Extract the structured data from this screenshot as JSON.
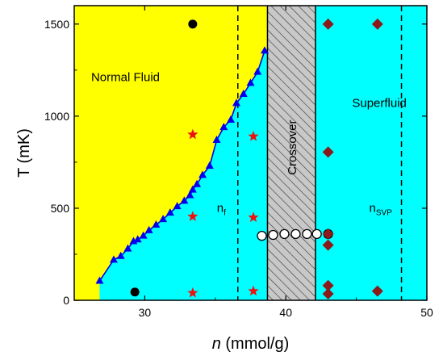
{
  "chart_data": {
    "type": "scatter",
    "title": "",
    "xlabel_italic": "n",
    "xlabel_rest": " (mmol/g)",
    "ylabel": "T (mK)",
    "xlim": [
      25,
      50
    ],
    "ylim": [
      0,
      1600
    ],
    "x_ticks": [
      "30",
      "40",
      "50"
    ],
    "x_tick_values": [
      30,
      40,
      50
    ],
    "y_ticks": [
      "0",
      "500",
      "1000",
      "1500"
    ],
    "y_tick_values": [
      0,
      500,
      1000,
      1500
    ],
    "regions": {
      "normal_fluid_label": "Normal Fluid",
      "superfluid_label": "Superfluid",
      "crossover_label": "Crossover",
      "crossover_x": [
        38.7,
        42.1
      ],
      "superfluid_boundary_x": 38.7,
      "colors": {
        "normal": "#ffff00",
        "superfluid": "#00ffff",
        "crossover": "#c8c8c8"
      }
    },
    "dashed_lines": [
      {
        "x": 36.6,
        "label": "n",
        "sub": "f"
      },
      {
        "x": 48.2,
        "label": "n",
        "sub": "SVP"
      }
    ],
    "series": [
      {
        "marker": "triangle",
        "color": "#0000ee",
        "connected": true,
        "points": [
          [
            26.8,
            105
          ],
          [
            27.8,
            220
          ],
          [
            28.3,
            240
          ],
          [
            28.8,
            280
          ],
          [
            29.2,
            320
          ],
          [
            29.5,
            330
          ],
          [
            29.9,
            350
          ],
          [
            30.3,
            380
          ],
          [
            30.8,
            410
          ],
          [
            31.3,
            440
          ],
          [
            31.8,
            475
          ],
          [
            32.3,
            510
          ],
          [
            32.8,
            540
          ],
          [
            33.2,
            570
          ],
          [
            33.4,
            600
          ],
          [
            33.7,
            630
          ],
          [
            34.1,
            680
          ],
          [
            34.6,
            730
          ],
          [
            35.1,
            870
          ],
          [
            35.6,
            940
          ],
          [
            36.1,
            980
          ],
          [
            36.5,
            1070
          ],
          [
            37.0,
            1120
          ],
          [
            37.5,
            1180
          ],
          [
            38.0,
            1240
          ],
          [
            38.5,
            1355
          ]
        ]
      },
      {
        "marker": "circle",
        "color": "#000000",
        "points": [
          [
            33.4,
            1500
          ],
          [
            29.3,
            45
          ]
        ]
      },
      {
        "marker": "star",
        "color": "#ee1111",
        "points": [
          [
            33.4,
            900
          ],
          [
            37.7,
            890
          ],
          [
            33.4,
            455
          ],
          [
            37.7,
            450
          ],
          [
            33.4,
            40
          ],
          [
            37.7,
            50
          ]
        ]
      },
      {
        "marker": "circle-open",
        "color": "#000000",
        "points": [
          [
            38.3,
            350
          ],
          [
            39.1,
            355
          ],
          [
            39.9,
            360
          ],
          [
            40.7,
            360
          ],
          [
            41.5,
            360
          ],
          [
            42.2,
            360
          ],
          [
            43.0,
            360
          ]
        ]
      },
      {
        "marker": "diamond",
        "color": "#8b1a1a",
        "points": [
          [
            43.0,
            1500
          ],
          [
            46.5,
            1500
          ],
          [
            43.0,
            805
          ],
          [
            43.0,
            360
          ],
          [
            43.0,
            300
          ],
          [
            43.0,
            80
          ],
          [
            43.0,
            35
          ],
          [
            46.5,
            50
          ]
        ]
      }
    ]
  }
}
